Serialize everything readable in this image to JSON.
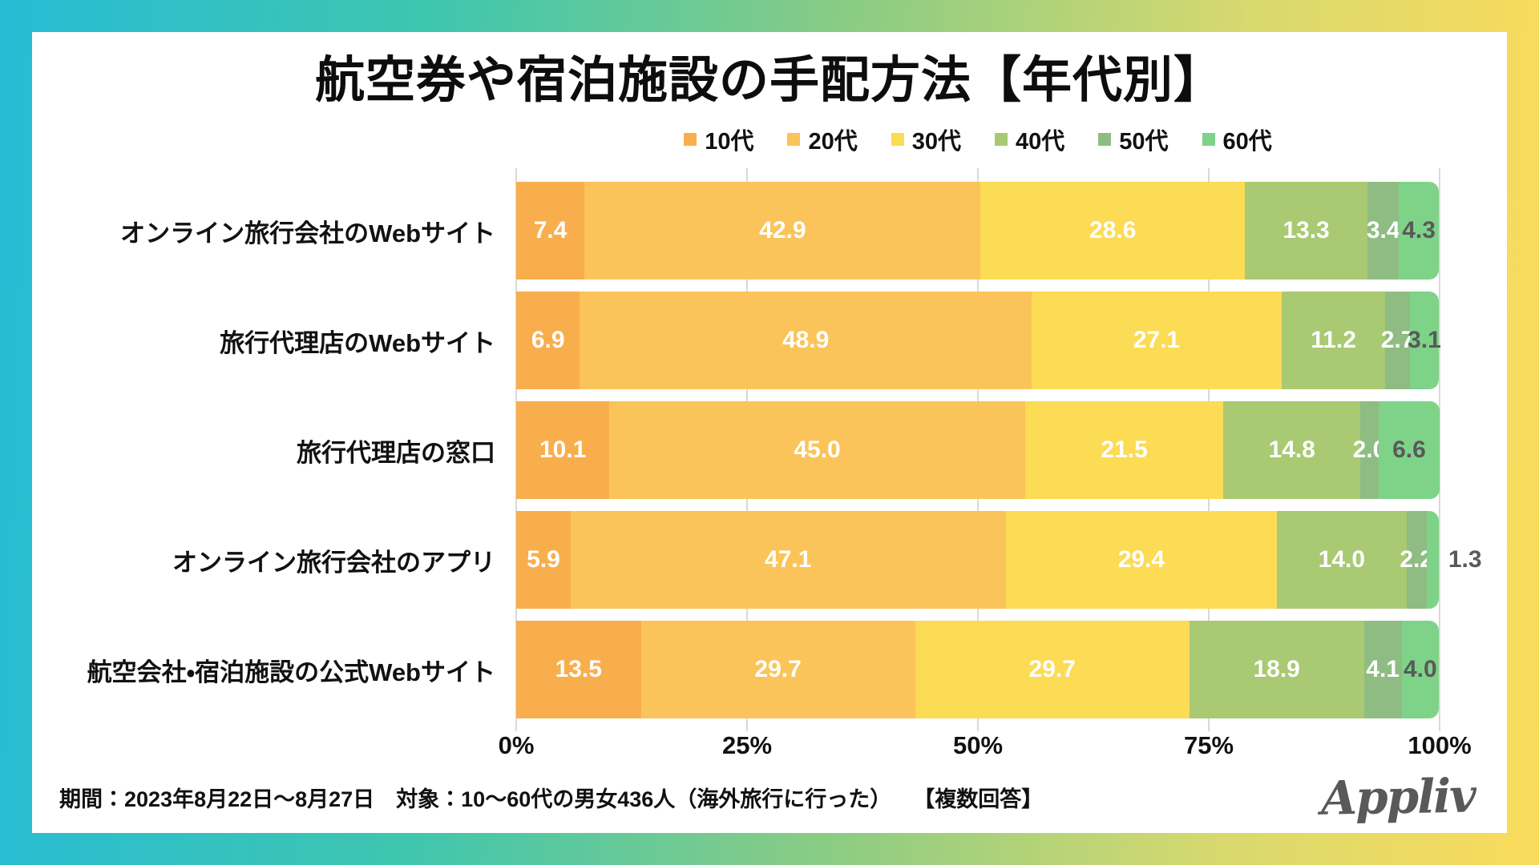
{
  "title": "航空券や宿泊施設の手配方法【年代別】",
  "chart_data": {
    "type": "bar",
    "stacked": true,
    "orientation": "horizontal",
    "unit": "%",
    "categories": [
      "オンライン旅行会社のWebサイト",
      "旅行代理店のWebサイト",
      "旅行代理店の窓口",
      "オンライン旅行会社のアプリ",
      "航空会社・宿泊施設の公式Webサイト"
    ],
    "series": [
      {
        "name": "10代",
        "color": "#F9AE4D",
        "values": [
          7.4,
          6.9,
          10.1,
          5.9,
          13.5
        ]
      },
      {
        "name": "20代",
        "color": "#FBC45A",
        "values": [
          42.9,
          48.9,
          45.0,
          47.1,
          29.7
        ]
      },
      {
        "name": "30代",
        "color": "#FCDB55",
        "values": [
          28.6,
          27.1,
          21.5,
          29.4,
          29.7
        ]
      },
      {
        "name": "40代",
        "color": "#A9C973",
        "values": [
          13.3,
          11.2,
          14.8,
          14.0,
          18.9
        ]
      },
      {
        "name": "50代",
        "color": "#8FBC82",
        "values": [
          3.4,
          2.7,
          2.0,
          2.2,
          4.1
        ]
      },
      {
        "name": "60代",
        "color": "#7ED389",
        "values": [
          4.3,
          3.1,
          6.6,
          1.3,
          4.0
        ]
      }
    ],
    "x_ticks": [
      {
        "label": "0%",
        "pos": 0
      },
      {
        "label": "25%",
        "pos": 25
      },
      {
        "label": "50%",
        "pos": 50
      },
      {
        "label": "75%",
        "pos": 75
      },
      {
        "label": "100%",
        "pos": 100
      }
    ],
    "xlim": [
      0,
      100
    ],
    "legend_position": "top",
    "grid": true,
    "value_label_color_inside": "#ffffff",
    "value_label_color_last": "#595959",
    "gridline_color": "#d9d9d9"
  },
  "footer": {
    "note": "期間：2023年8月22日〜8月27日　対象：10〜60代の男女436人（海外旅行に行った）　　【複数回答】",
    "logo": "Appliv"
  }
}
